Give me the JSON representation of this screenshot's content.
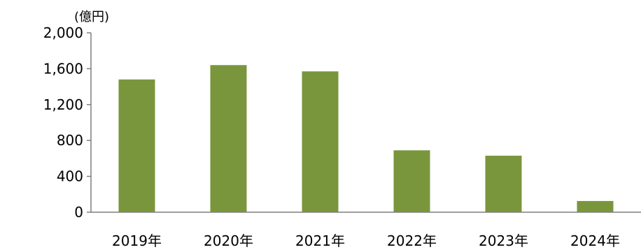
{
  "chart_data": {
    "type": "bar",
    "unit_label": "(億円)",
    "categories": [
      "2019年",
      "2020年",
      "2021年",
      "2022年",
      "2023年",
      "2024年"
    ],
    "values": [
      1480,
      1640,
      1570,
      690,
      630,
      125
    ],
    "ylim": [
      0,
      2000
    ],
    "yticks": [
      "0",
      "400",
      "800",
      "1,200",
      "1,600",
      "2,000"
    ],
    "ytick_values": [
      0,
      400,
      800,
      1200,
      1600,
      2000
    ],
    "bar_color": "#7a963c",
    "axis_color": "#7f7f7f",
    "grid": false
  }
}
